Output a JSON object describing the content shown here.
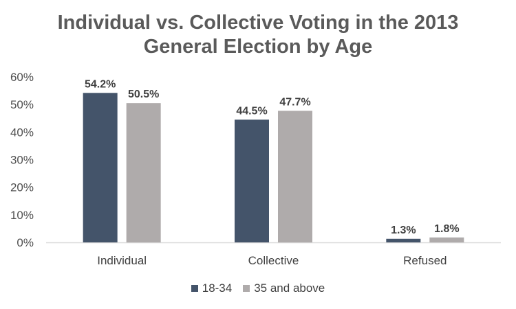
{
  "chart_data": {
    "type": "bar",
    "title_line1": "Individual vs. Collective Voting in the 2013",
    "title_line2": "General Election by Age",
    "categories": [
      "Individual",
      "Collective",
      "Refused"
    ],
    "series": [
      {
        "name": "18-34",
        "values": [
          54.2,
          44.5,
          1.3
        ],
        "labels": [
          "54.2%",
          "44.5%",
          "1.3%"
        ],
        "color": "#44546a"
      },
      {
        "name": "35 and above",
        "values": [
          50.5,
          47.7,
          1.8
        ],
        "labels": [
          "50.5%",
          "47.7%",
          "1.8%"
        ],
        "color": "#afabab"
      }
    ],
    "y_ticks": [
      "0%",
      "10%",
      "20%",
      "30%",
      "40%",
      "50%",
      "60%"
    ],
    "ylim": [
      0,
      60
    ],
    "grid": false,
    "legend_position": "bottom"
  }
}
